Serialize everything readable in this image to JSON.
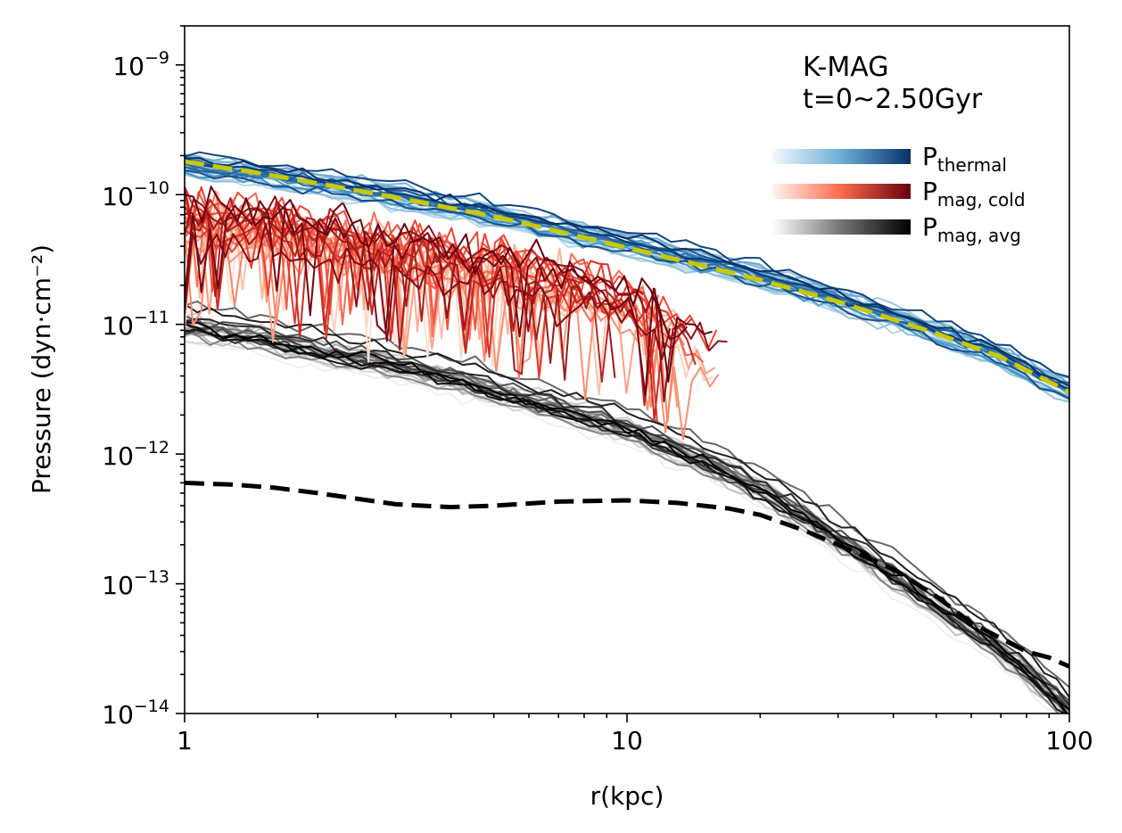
{
  "chart_data": {
    "type": "line",
    "xscale": "log",
    "yscale": "log",
    "xlim": [
      1,
      100
    ],
    "ylim": [
      1e-14,
      2e-09
    ],
    "xlabel": "r(kpc)",
    "ylabel": "Pressure (dyn·cm⁻²)",
    "xticks": [
      {
        "value": 1,
        "label": "1"
      },
      {
        "value": 10,
        "label": "10"
      },
      {
        "value": 100,
        "label": "100"
      }
    ],
    "yticks": [
      {
        "value": 1e-09,
        "base": "10",
        "exp": "−9"
      },
      {
        "value": 1e-10,
        "base": "10",
        "exp": "−10"
      },
      {
        "value": 1e-11,
        "base": "10",
        "exp": "−11"
      },
      {
        "value": 1e-12,
        "base": "10",
        "exp": "−12"
      },
      {
        "value": 1e-13,
        "base": "10",
        "exp": "−13"
      },
      {
        "value": 1e-14,
        "base": "10",
        "exp": "−14"
      }
    ],
    "annotation": {
      "line1": "K-MAG",
      "line2": "t=0~2.50Gyr"
    },
    "legend": {
      "placement": "top-right",
      "entries": [
        {
          "base": "P",
          "sub": "thermal",
          "colors": [
            "#f4f8fd",
            "#6baed6",
            "#08306b"
          ]
        },
        {
          "base": "P",
          "sub": "mag, cold",
          "colors": [
            "#fff5f0",
            "#fb6a4a",
            "#67000d"
          ]
        },
        {
          "base": "P",
          "sub": "mag, avg",
          "colors": [
            "#ffffff",
            "#737373",
            "#000000"
          ]
        }
      ]
    },
    "series": [
      {
        "name": "P_thermal",
        "colormap": [
          "#deebf7",
          "#9ecae1",
          "#4292c6",
          "#08306b"
        ],
        "count": 30,
        "x": [
          1,
          1.5,
          2,
          3,
          5,
          7,
          10,
          15,
          20,
          30,
          50,
          70,
          100
        ],
        "values": [
          1.75e-10,
          1.45e-10,
          1.25e-10,
          1e-10,
          7.2e-11,
          5.6e-11,
          4.3e-11,
          3.1e-11,
          2.4e-11,
          1.6e-11,
          9e-12,
          5.8e-12,
          3.1e-12
        ],
        "x_end": 100
      },
      {
        "name": "P_mag,cold",
        "colormap": [
          "#fee0d2",
          "#fc9272",
          "#ef3b2c",
          "#67000d"
        ],
        "count": 30,
        "x": [
          1,
          1.5,
          2,
          3,
          5,
          7,
          10,
          15
        ],
        "values": [
          6e-11,
          5.5e-11,
          4.5e-11,
          3.5e-11,
          2.6e-11,
          2e-11,
          1.4e-11,
          6e-12
        ],
        "x_end": 17
      },
      {
        "name": "P_mag,avg",
        "colormap": [
          "#f0f0f0",
          "#bdbdbd",
          "#636363",
          "#000000"
        ],
        "count": 30,
        "x": [
          1,
          1.5,
          2,
          3,
          5,
          7,
          10,
          15,
          20,
          30,
          40,
          50,
          70,
          100
        ],
        "values": [
          1e-11,
          8e-12,
          6.5e-12,
          5e-12,
          3.2e-12,
          2.3e-12,
          1.6e-12,
          9e-13,
          5.5e-13,
          2.3e-13,
          1.2e-13,
          7e-14,
          3.2e-14,
          1.1e-14
        ],
        "x_end": 100
      },
      {
        "name": "thermal reference (yellow dashed)",
        "color": "#c8c800",
        "dash": true,
        "x": [
          1,
          1.5,
          2,
          3,
          5,
          7,
          10,
          15,
          20,
          30,
          50,
          70,
          100
        ],
        "values": [
          1.8e-10,
          1.45e-10,
          1.22e-10,
          9.5e-11,
          6.8e-11,
          5.2e-11,
          3.9e-11,
          2.8e-11,
          2.2e-11,
          1.5e-11,
          8.5e-12,
          5.6e-12,
          3e-12
        ]
      },
      {
        "name": "magnetic reference (black dashed)",
        "color": "#000000",
        "dash": true,
        "x": [
          1,
          1.3,
          1.6,
          2,
          3,
          4,
          5,
          7,
          10,
          13,
          17,
          20,
          25,
          30,
          40,
          50,
          60,
          70,
          80,
          90,
          100
        ],
        "values": [
          6e-13,
          5.8e-13,
          5.5e-13,
          5e-13,
          4.1e-13,
          3.9e-13,
          4e-13,
          4.3e-13,
          4.4e-13,
          4.2e-13,
          3.8e-13,
          3.4e-13,
          2.6e-13,
          2e-13,
          1.3e-13,
          8e-14,
          5e-14,
          3.8e-14,
          3e-14,
          2.7e-14,
          2.3e-14
        ]
      }
    ]
  }
}
